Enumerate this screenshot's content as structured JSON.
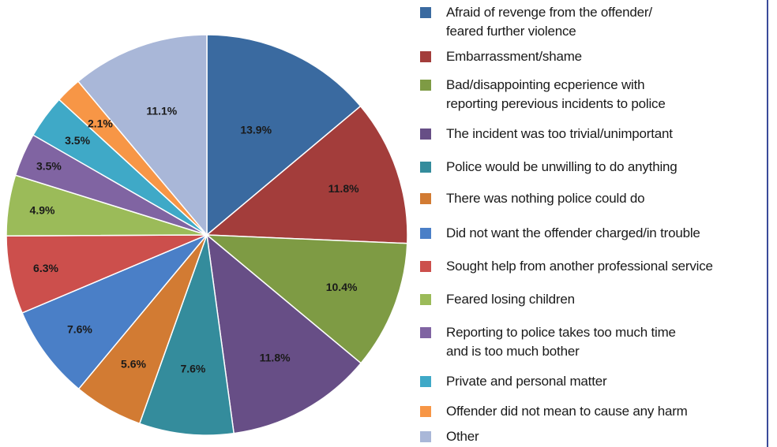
{
  "chart_data": {
    "type": "pie",
    "title": "",
    "start_angle_deg": 0,
    "direction": "clockwise",
    "legend_placement": "right",
    "slices": [
      {
        "label": "Afraid of revenge from the offender/\nfeared further violence",
        "value": 13.9,
        "display": "13.9%",
        "color": "#3a6aa0"
      },
      {
        "label": "Embarrassment/shame",
        "value": 11.8,
        "display": "11.8%",
        "color": "#a33d3b"
      },
      {
        "label": "Bad/disappointing ecperience with\nreporting perevious incidents to police",
        "value": 10.4,
        "display": "10.4%",
        "color": "#7e9b44"
      },
      {
        "label": "The incident was too trivial/unimportant",
        "value": 11.8,
        "display": "11.8%",
        "color": "#674e86"
      },
      {
        "label": "Police would be unwilling to do anything",
        "value": 7.6,
        "display": "7.6%",
        "color": "#348c9c"
      },
      {
        "label": "There was nothing police could do",
        "value": 5.6,
        "display": "5.6%",
        "color": "#d27b33"
      },
      {
        "label": "Did not want the offender charged/in trouble",
        "value": 7.6,
        "display": "7.6%",
        "color": "#4a7fc7"
      },
      {
        "label": "Sought help from another professional service",
        "value": 6.3,
        "display": "6.3%",
        "color": "#cc4f4c"
      },
      {
        "label": "Feared losing children",
        "value": 4.9,
        "display": "4.9%",
        "color": "#9bbb59"
      },
      {
        "label": "Reporting to police takes too much time\nand is too much bother",
        "value": 3.5,
        "display": "3.5%",
        "color": "#8064a2"
      },
      {
        "label": "Private and personal matter",
        "value": 3.5,
        "display": "3.5%",
        "color": "#3fa9c7"
      },
      {
        "label": "Offender did not mean to cause any harm",
        "value": 2.1,
        "display": "2.1%",
        "color": "#f79646"
      },
      {
        "label": "Other",
        "value": 11.1,
        "display": "11.1%",
        "color": "#a9b7d8"
      }
    ]
  }
}
